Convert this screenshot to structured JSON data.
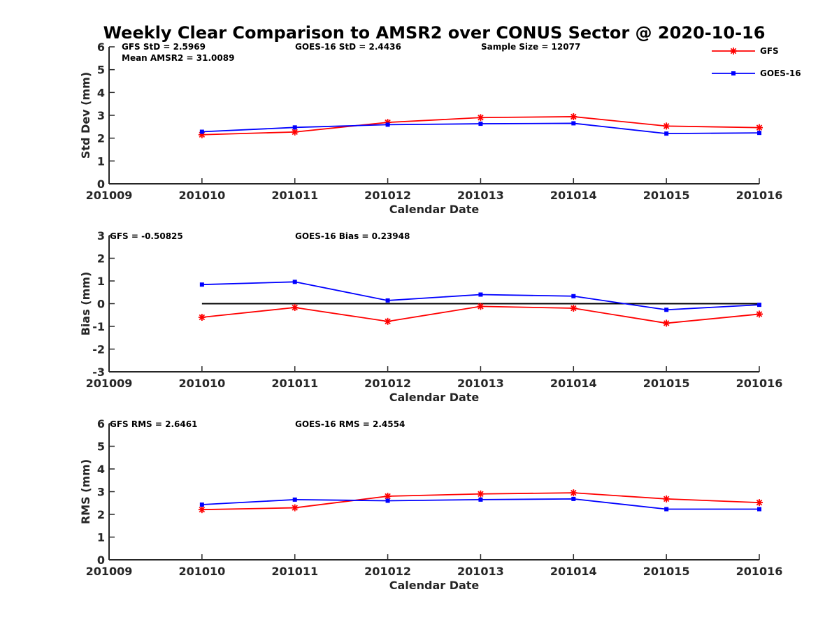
{
  "title": "Weekly Clear Comparison to AMSR2 over CONUS Sector @ 2020-10-16",
  "legend": {
    "placement": "top-right",
    "items": [
      {
        "label": "GFS",
        "color": "#ff0000",
        "marker": "asterisk"
      },
      {
        "label": "GOES-16",
        "color": "#0000ff",
        "marker": "square"
      }
    ]
  },
  "panels": [
    {
      "stats": [
        "GFS StD = 2.5969",
        "GOES-16 StD = 2.4436",
        "Sample Size = 12077",
        "Mean AMSR2 = 31.0089"
      ]
    },
    {
      "stats": [
        "GFS = -0.50825",
        "GOES-16 Bias  = 0.23948"
      ]
    },
    {
      "stats": [
        "GFS RMS = 2.6461",
        "GOES-16 RMS = 2.4554"
      ]
    }
  ],
  "chart_data": [
    {
      "type": "line",
      "xlabel": "Calendar Date",
      "ylabel": "Std Dev (mm)",
      "categories": [
        "201009",
        "201010",
        "201011",
        "201012",
        "201013",
        "201014",
        "201015",
        "201016"
      ],
      "xlim": [
        201009,
        201016
      ],
      "ylim": [
        0,
        6
      ],
      "yticks": [
        "0",
        "1",
        "2",
        "3",
        "4",
        "5",
        "6"
      ],
      "zero_line": false,
      "series": [
        {
          "name": "GFS",
          "color": "#ff0000",
          "marker": "asterisk",
          "x": [
            201010,
            201011,
            201012,
            201013,
            201014,
            201015,
            201016
          ],
          "values": [
            2.15,
            2.27,
            2.69,
            2.9,
            2.94,
            2.53,
            2.46
          ]
        },
        {
          "name": "GOES-16",
          "color": "#0000ff",
          "marker": "square",
          "x": [
            201010,
            201011,
            201012,
            201013,
            201014,
            201015,
            201016
          ],
          "values": [
            2.28,
            2.47,
            2.59,
            2.63,
            2.65,
            2.2,
            2.23
          ]
        }
      ]
    },
    {
      "type": "line",
      "xlabel": "Calendar Date",
      "ylabel": "Bias (mm)",
      "categories": [
        "201009",
        "201010",
        "201011",
        "201012",
        "201013",
        "201014",
        "201015",
        "201016"
      ],
      "xlim": [
        201009,
        201016
      ],
      "ylim": [
        -3,
        3
      ],
      "yticks": [
        "-3",
        "-2",
        "-1",
        "0",
        "1",
        "2",
        "3"
      ],
      "zero_line": true,
      "series": [
        {
          "name": "GFS",
          "color": "#ff0000",
          "marker": "asterisk",
          "x": [
            201010,
            201011,
            201012,
            201013,
            201014,
            201015,
            201016
          ],
          "values": [
            -0.6,
            -0.17,
            -0.78,
            -0.12,
            -0.2,
            -0.86,
            -0.46
          ]
        },
        {
          "name": "GOES-16",
          "color": "#0000ff",
          "marker": "square",
          "x": [
            201010,
            201011,
            201012,
            201013,
            201014,
            201015,
            201016
          ],
          "values": [
            0.84,
            0.96,
            0.14,
            0.4,
            0.33,
            -0.27,
            -0.05
          ]
        }
      ]
    },
    {
      "type": "line",
      "xlabel": "Calendar Date",
      "ylabel": "RMS (mm)",
      "categories": [
        "201009",
        "201010",
        "201011",
        "201012",
        "201013",
        "201014",
        "201015",
        "201016"
      ],
      "xlim": [
        201009,
        201016
      ],
      "ylim": [
        0,
        6
      ],
      "yticks": [
        "0",
        "1",
        "2",
        "3",
        "4",
        "5",
        "6"
      ],
      "zero_line": false,
      "series": [
        {
          "name": "GFS",
          "color": "#ff0000",
          "marker": "asterisk",
          "x": [
            201010,
            201011,
            201012,
            201013,
            201014,
            201015,
            201016
          ],
          "values": [
            2.21,
            2.29,
            2.8,
            2.9,
            2.95,
            2.68,
            2.52
          ]
        },
        {
          "name": "GOES-16",
          "color": "#0000ff",
          "marker": "square",
          "x": [
            201010,
            201011,
            201012,
            201013,
            201014,
            201015,
            201016
          ],
          "values": [
            2.43,
            2.65,
            2.6,
            2.65,
            2.68,
            2.23,
            2.23
          ]
        }
      ]
    }
  ]
}
